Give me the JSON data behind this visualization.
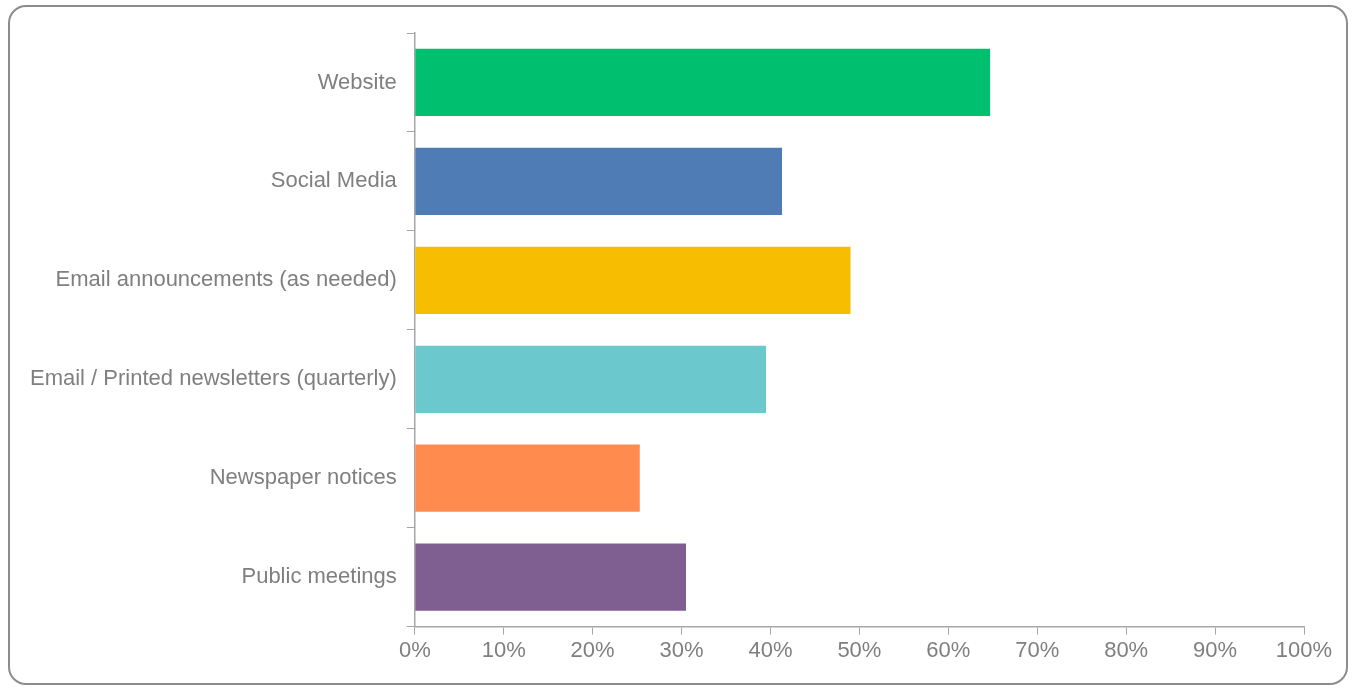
{
  "chart_data": {
    "type": "bar",
    "orientation": "horizontal",
    "categories": [
      "Website",
      "Social Media",
      "Email announcements (as needed)",
      "Email / Printed newsletters (quarterly)",
      "Newspaper notices",
      "Public meetings"
    ],
    "values": [
      64.7,
      41.3,
      49,
      39.5,
      25.3,
      30.5
    ],
    "colors": [
      "#00bf6f",
      "#507cb6",
      "#f7bd00",
      "#6bc8cd",
      "#ff8b4f",
      "#7f5f91"
    ],
    "xlim": [
      0,
      100
    ],
    "xticks": [
      {
        "value": 0,
        "label": "0%"
      },
      {
        "value": 10,
        "label": "10%"
      },
      {
        "value": 20,
        "label": "20%"
      },
      {
        "value": 30,
        "label": "30%"
      },
      {
        "value": 40,
        "label": "40%"
      },
      {
        "value": 50,
        "label": "50%"
      },
      {
        "value": 60,
        "label": "60%"
      },
      {
        "value": 70,
        "label": "70%"
      },
      {
        "value": 80,
        "label": "80%"
      },
      {
        "value": 90,
        "label": "90%"
      },
      {
        "value": 100,
        "label": "100%"
      }
    ],
    "grid": false,
    "legend": false
  }
}
